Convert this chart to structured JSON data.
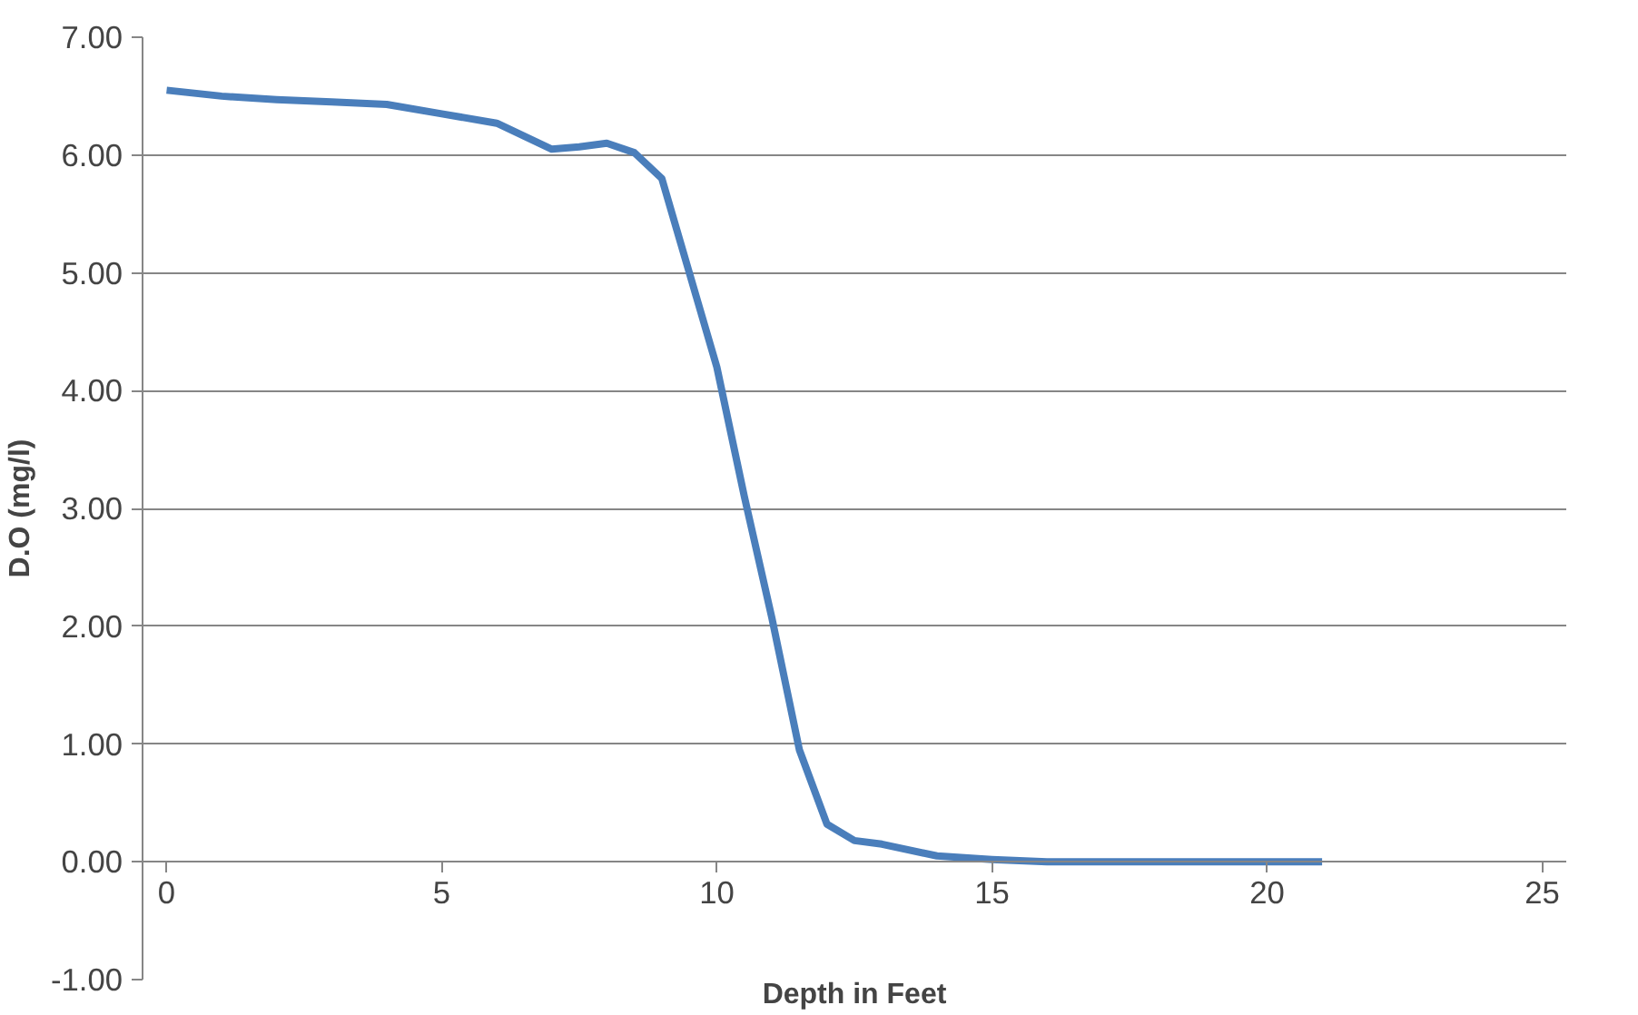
{
  "chart_data": {
    "type": "line",
    "xlabel": "Depth in Feet",
    "ylabel": "D.O (mg/l)",
    "x": [
      0,
      1,
      2,
      3,
      4,
      5,
      6,
      7,
      7.5,
      8,
      8.5,
      9,
      9.5,
      10,
      10.5,
      11,
      11.5,
      12,
      12.5,
      13,
      14,
      15,
      16,
      17,
      18,
      19,
      20,
      21
    ],
    "series": [
      {
        "color": "#4a7ebb",
        "values": [
          6.55,
          6.5,
          6.47,
          6.45,
          6.43,
          6.35,
          6.27,
          6.05,
          6.07,
          6.1,
          6.02,
          5.8,
          5.0,
          4.2,
          3.1,
          2.07,
          0.95,
          0.32,
          0.18,
          0.15,
          0.05,
          0.02,
          0.0,
          0.0,
          0.0,
          0.0,
          0.0,
          0.0
        ]
      }
    ],
    "xlim": [
      0,
      25
    ],
    "xticks": [
      0,
      5,
      10,
      15,
      20,
      25
    ],
    "ylim": [
      -1,
      7
    ],
    "yticks": [
      {
        "value": -1,
        "label": "-1.00"
      },
      {
        "value": 0,
        "label": "0.00"
      },
      {
        "value": 1,
        "label": "1.00"
      },
      {
        "value": 2,
        "label": "2.00"
      },
      {
        "value": 3,
        "label": "3.00"
      },
      {
        "value": 4,
        "label": "4.00"
      },
      {
        "value": 5,
        "label": "5.00"
      },
      {
        "value": 6,
        "label": "6.00"
      },
      {
        "value": 7,
        "label": "7.00"
      }
    ],
    "grid": "y",
    "marker": "none",
    "line_style": "solid"
  }
}
